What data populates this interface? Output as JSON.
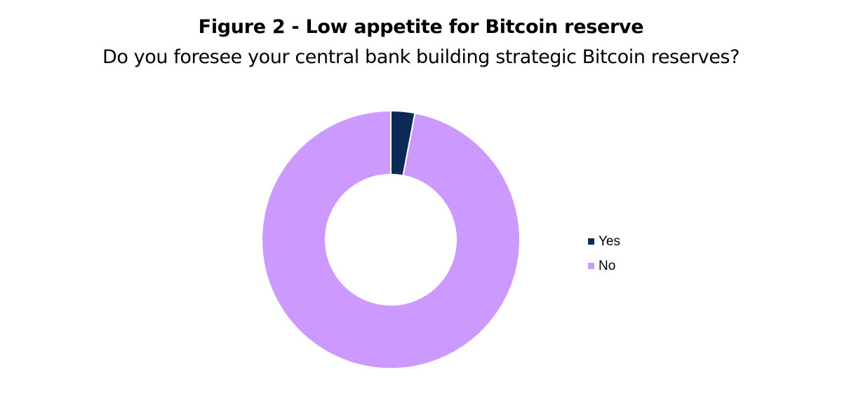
{
  "chart_data": {
    "type": "pie",
    "title": "Figure 2 - Low appetite for Bitcoin reserve",
    "subtitle": "Do you foresee your central bank building strategic Bitcoin reserves?",
    "donut": true,
    "categories": [
      "Yes",
      "No"
    ],
    "values": [
      3,
      97
    ],
    "colors": [
      "#0b2a57",
      "#cc99ff"
    ],
    "legend": "right"
  }
}
